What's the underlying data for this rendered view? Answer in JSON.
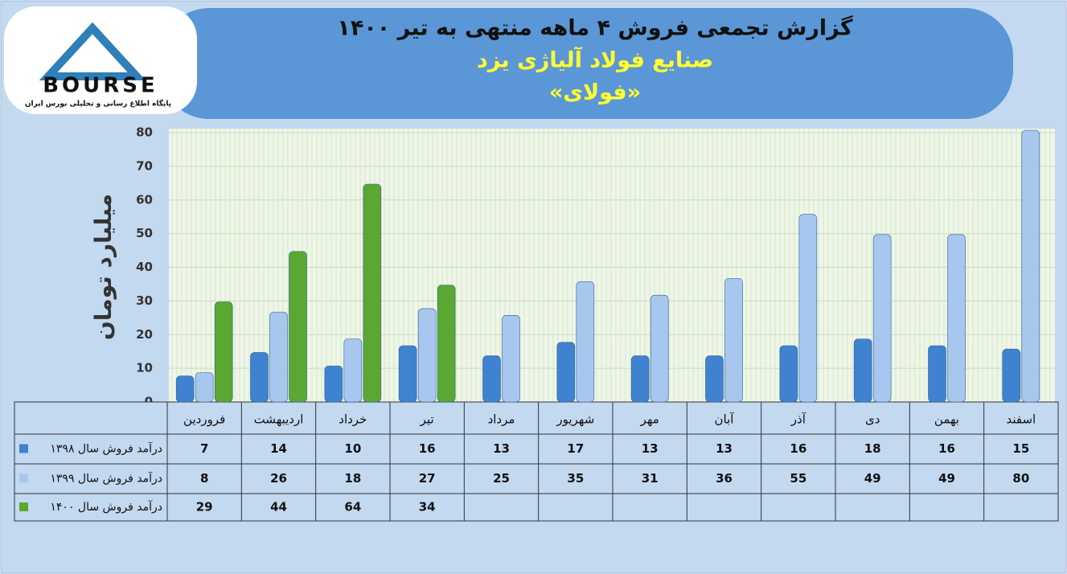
{
  "chart_data": {
    "type": "bar",
    "title": "گزارش تجمعی فروش ۴ ماهه منتهی به تیر ۱۴۰۰",
    "subtitle": "صنایع فولاد آلیاژی یزد",
    "company": "«فولای»",
    "y_label": "میلیارد تومان",
    "logo": {
      "text": "BOURSE",
      "caption": "پایگاه اطلاع رسانی و تحلیلی بورس ایران"
    },
    "categories": [
      "فروردین",
      "اردیبهشت",
      "خرداد",
      "تیر",
      "مرداد",
      "شهریور",
      "مهر",
      "آبان",
      "آذر",
      "دی",
      "بهمن",
      "اسفند"
    ],
    "series": [
      {
        "name": "درآمد فروش سال ۱۳۹۸",
        "color": "#3f83d0",
        "values": [
          7,
          14,
          10,
          16,
          13,
          17,
          13,
          13,
          16,
          18,
          16,
          15
        ]
      },
      {
        "name": "درآمد فروش سال ۱۳۹۹",
        "color": "#a8c7ef",
        "values": [
          8,
          26,
          18,
          27,
          25,
          35,
          31,
          36,
          55,
          49,
          49,
          80
        ]
      },
      {
        "name": "درآمد فروش سال ۱۴۰۰",
        "color": "#5aa832",
        "values": [
          29,
          44,
          64,
          34,
          null,
          null,
          null,
          null,
          null,
          null,
          null,
          null
        ]
      }
    ],
    "ylim": [
      0,
      80
    ],
    "yticks": [
      0,
      10,
      20,
      30,
      40,
      50,
      60,
      70,
      80
    ],
    "grid": true
  }
}
